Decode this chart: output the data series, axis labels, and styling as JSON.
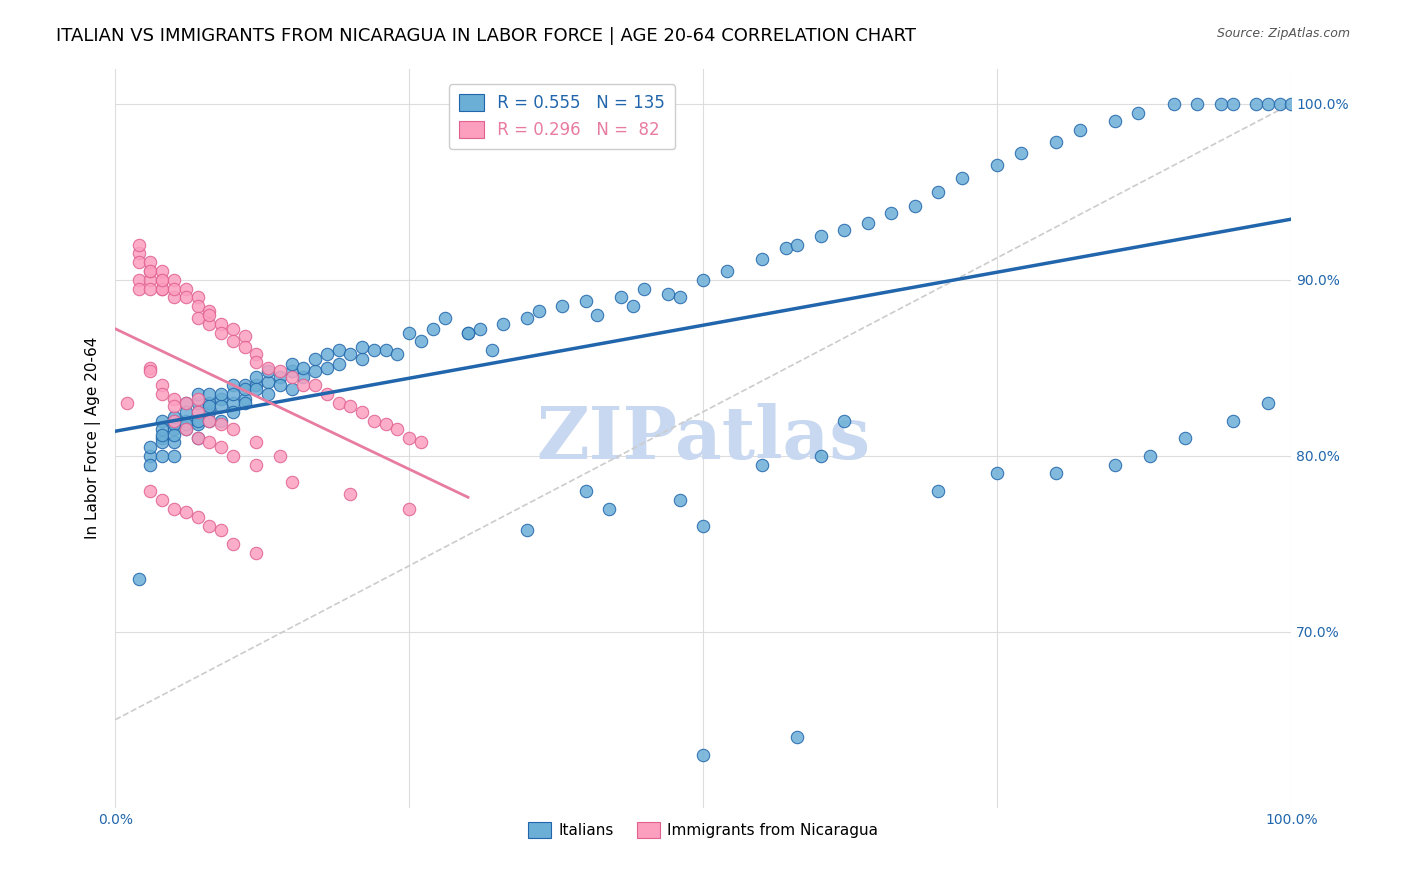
{
  "title": "ITALIAN VS IMMIGRANTS FROM NICARAGUA IN LABOR FORCE | AGE 20-64 CORRELATION CHART",
  "source": "Source: ZipAtlas.com",
  "xlabel": "",
  "ylabel": "In Labor Force | Age 20-64",
  "xlim": [
    0.0,
    1.0
  ],
  "ylim": [
    0.6,
    1.02
  ],
  "x_tick_labels": [
    "0.0%",
    "100.0%"
  ],
  "y_tick_labels": [
    "70.0%",
    "80.0%",
    "90.0%",
    "100.0%"
  ],
  "y_tick_positions": [
    0.7,
    0.8,
    0.9,
    1.0
  ],
  "legend_blue_r": "0.555",
  "legend_blue_n": "135",
  "legend_pink_r": "0.296",
  "legend_pink_n": "82",
  "blue_color": "#6baed6",
  "pink_color": "#fc9fbf",
  "blue_line_color": "#2166ac",
  "pink_line_color": "#e87ca0",
  "dashed_line_color": "#cccccc",
  "watermark": "ZIPatlas",
  "watermark_color": "#c8d8f0",
  "background_color": "#ffffff",
  "grid_color": "#dddddd",
  "title_fontsize": 13,
  "axis_label_fontsize": 11,
  "tick_fontsize": 10,
  "blue_scatter_x": [
    0.02,
    0.03,
    0.03,
    0.03,
    0.04,
    0.04,
    0.04,
    0.04,
    0.04,
    0.04,
    0.05,
    0.05,
    0.05,
    0.05,
    0.05,
    0.05,
    0.05,
    0.06,
    0.06,
    0.06,
    0.06,
    0.06,
    0.07,
    0.07,
    0.07,
    0.07,
    0.07,
    0.07,
    0.08,
    0.08,
    0.08,
    0.08,
    0.08,
    0.09,
    0.09,
    0.09,
    0.09,
    0.1,
    0.1,
    0.1,
    0.1,
    0.11,
    0.11,
    0.11,
    0.11,
    0.12,
    0.12,
    0.12,
    0.13,
    0.13,
    0.13,
    0.14,
    0.14,
    0.15,
    0.15,
    0.15,
    0.16,
    0.16,
    0.17,
    0.17,
    0.18,
    0.18,
    0.19,
    0.19,
    0.2,
    0.21,
    0.21,
    0.22,
    0.23,
    0.24,
    0.25,
    0.26,
    0.27,
    0.28,
    0.3,
    0.31,
    0.33,
    0.35,
    0.36,
    0.38,
    0.4,
    0.41,
    0.43,
    0.44,
    0.45,
    0.47,
    0.48,
    0.5,
    0.52,
    0.55,
    0.57,
    0.58,
    0.6,
    0.62,
    0.64,
    0.66,
    0.68,
    0.7,
    0.72,
    0.75,
    0.77,
    0.8,
    0.82,
    0.85,
    0.87,
    0.9,
    0.92,
    0.94,
    0.95,
    0.97,
    0.98,
    0.99,
    1.0,
    0.5,
    0.55,
    0.6,
    0.35,
    0.4,
    0.42,
    0.62,
    0.7,
    0.75,
    0.8,
    0.85,
    0.88,
    0.91,
    0.95,
    0.98,
    0.5,
    0.58,
    0.48,
    0.3,
    0.32
  ],
  "blue_scatter_y": [
    0.73,
    0.8,
    0.795,
    0.805,
    0.82,
    0.81,
    0.815,
    0.8,
    0.808,
    0.812,
    0.815,
    0.82,
    0.818,
    0.808,
    0.8,
    0.812,
    0.822,
    0.82,
    0.83,
    0.815,
    0.818,
    0.825,
    0.825,
    0.818,
    0.83,
    0.81,
    0.835,
    0.82,
    0.825,
    0.83,
    0.82,
    0.835,
    0.828,
    0.832,
    0.828,
    0.835,
    0.82,
    0.83,
    0.825,
    0.84,
    0.835,
    0.84,
    0.832,
    0.838,
    0.83,
    0.84,
    0.845,
    0.838,
    0.842,
    0.848,
    0.835,
    0.845,
    0.84,
    0.848,
    0.838,
    0.852,
    0.845,
    0.85,
    0.848,
    0.855,
    0.85,
    0.858,
    0.852,
    0.86,
    0.858,
    0.855,
    0.862,
    0.86,
    0.86,
    0.858,
    0.87,
    0.865,
    0.872,
    0.878,
    0.87,
    0.872,
    0.875,
    0.878,
    0.882,
    0.885,
    0.888,
    0.88,
    0.89,
    0.885,
    0.895,
    0.892,
    0.89,
    0.9,
    0.905,
    0.912,
    0.918,
    0.92,
    0.925,
    0.928,
    0.932,
    0.938,
    0.942,
    0.95,
    0.958,
    0.965,
    0.972,
    0.978,
    0.985,
    0.99,
    0.995,
    1.0,
    1.0,
    1.0,
    1.0,
    1.0,
    1.0,
    1.0,
    1.0,
    0.76,
    0.795,
    0.8,
    0.758,
    0.78,
    0.77,
    0.82,
    0.78,
    0.79,
    0.79,
    0.795,
    0.8,
    0.81,
    0.82,
    0.83,
    0.63,
    0.64,
    0.775,
    0.87,
    0.86
  ],
  "pink_scatter_x": [
    0.01,
    0.02,
    0.02,
    0.02,
    0.02,
    0.02,
    0.03,
    0.03,
    0.03,
    0.03,
    0.03,
    0.04,
    0.04,
    0.04,
    0.04,
    0.04,
    0.05,
    0.05,
    0.05,
    0.06,
    0.06,
    0.07,
    0.07,
    0.07,
    0.08,
    0.08,
    0.08,
    0.09,
    0.09,
    0.1,
    0.1,
    0.11,
    0.11,
    0.12,
    0.12,
    0.13,
    0.14,
    0.15,
    0.16,
    0.17,
    0.18,
    0.19,
    0.2,
    0.21,
    0.22,
    0.23,
    0.24,
    0.25,
    0.26,
    0.05,
    0.06,
    0.07,
    0.07,
    0.08,
    0.09,
    0.1,
    0.12,
    0.14,
    0.03,
    0.03,
    0.04,
    0.04,
    0.05,
    0.05,
    0.06,
    0.07,
    0.08,
    0.09,
    0.1,
    0.12,
    0.15,
    0.2,
    0.25,
    0.03,
    0.04,
    0.05,
    0.06,
    0.07,
    0.08,
    0.09,
    0.1,
    0.12
  ],
  "pink_scatter_y": [
    0.83,
    0.9,
    0.895,
    0.915,
    0.92,
    0.91,
    0.9,
    0.905,
    0.895,
    0.91,
    0.905,
    0.9,
    0.895,
    0.905,
    0.895,
    0.9,
    0.89,
    0.9,
    0.895,
    0.895,
    0.89,
    0.89,
    0.885,
    0.878,
    0.882,
    0.875,
    0.88,
    0.875,
    0.87,
    0.872,
    0.865,
    0.868,
    0.862,
    0.858,
    0.853,
    0.85,
    0.848,
    0.845,
    0.84,
    0.84,
    0.835,
    0.83,
    0.828,
    0.825,
    0.82,
    0.818,
    0.815,
    0.81,
    0.808,
    0.832,
    0.83,
    0.825,
    0.832,
    0.82,
    0.818,
    0.815,
    0.808,
    0.8,
    0.85,
    0.848,
    0.84,
    0.835,
    0.828,
    0.82,
    0.815,
    0.81,
    0.808,
    0.805,
    0.8,
    0.795,
    0.785,
    0.778,
    0.77,
    0.78,
    0.775,
    0.77,
    0.768,
    0.765,
    0.76,
    0.758,
    0.75,
    0.745
  ]
}
